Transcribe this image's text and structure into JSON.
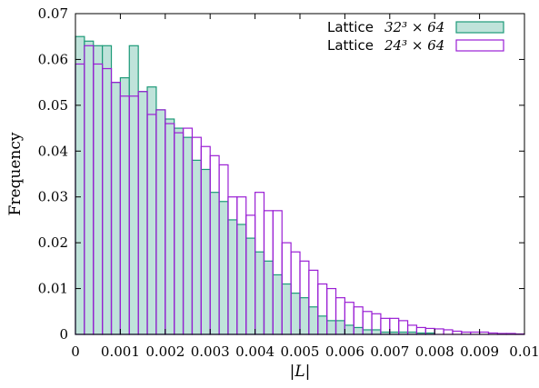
{
  "chart_data": {
    "type": "bar",
    "subtype": "overlaid-histogram",
    "title": "",
    "xlabel": "|L|",
    "ylabel": "Frequency",
    "xlim": [
      0,
      0.01
    ],
    "ylim": [
      0,
      0.07
    ],
    "bin_width": 0.0002,
    "x_ticks": [
      "0",
      "0.001",
      "0.002",
      "0.003",
      "0.004",
      "0.005",
      "0.006",
      "0.007",
      "0.008",
      "0.009",
      "0.01"
    ],
    "y_ticks": [
      "0",
      "0.01",
      "0.02",
      "0.03",
      "0.04",
      "0.05",
      "0.06",
      "0.07"
    ],
    "legend_position": "top-right",
    "grid": false,
    "series": [
      {
        "name": "Lattice  32³ × 64",
        "legend_word": "Lattice",
        "legend_math": "32³ × 64",
        "style": "filled",
        "fill_color": "#bfe3da",
        "stroke_color": "#1d9a78",
        "values": [
          0.065,
          0.064,
          0.063,
          0.063,
          0.055,
          0.056,
          0.063,
          0.053,
          0.054,
          0.049,
          0.047,
          0.045,
          0.043,
          0.038,
          0.036,
          0.031,
          0.029,
          0.025,
          0.024,
          0.021,
          0.018,
          0.016,
          0.013,
          0.011,
          0.009,
          0.008,
          0.006,
          0.004,
          0.003,
          0.003,
          0.002,
          0.0015,
          0.001,
          0.001,
          0.0005,
          0.0005,
          0.0005,
          0.0005,
          0.0003,
          0.0003,
          0.0,
          0.0,
          0.0,
          0.0,
          0.0,
          0.0,
          0.0,
          0.0,
          0.0,
          0.0
        ]
      },
      {
        "name": "Lattice  24³ × 64",
        "legend_word": "Lattice",
        "legend_math": "24³ × 64",
        "style": "outline",
        "fill_color": "none",
        "stroke_color": "#9a1fd4",
        "values": [
          0.059,
          0.063,
          0.059,
          0.058,
          0.055,
          0.052,
          0.052,
          0.053,
          0.048,
          0.049,
          0.046,
          0.044,
          0.045,
          0.043,
          0.041,
          0.039,
          0.037,
          0.03,
          0.03,
          0.026,
          0.031,
          0.027,
          0.027,
          0.02,
          0.018,
          0.016,
          0.014,
          0.011,
          0.01,
          0.008,
          0.007,
          0.006,
          0.005,
          0.0045,
          0.0035,
          0.0035,
          0.003,
          0.002,
          0.0015,
          0.0013,
          0.0012,
          0.001,
          0.0007,
          0.0005,
          0.0005,
          0.0005,
          0.0003,
          0.0002,
          0.0002,
          0.0001
        ]
      }
    ]
  }
}
